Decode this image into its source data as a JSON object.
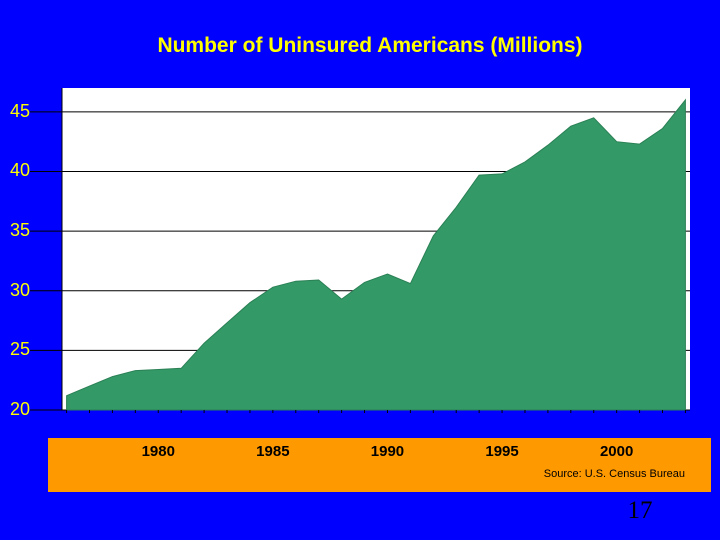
{
  "chart_data": {
    "type": "area",
    "title": "Number of Uninsured Americans (Millions)",
    "xlabel": "",
    "ylabel": "",
    "x": [
      1976,
      1977,
      1978,
      1979,
      1980,
      1981,
      1982,
      1983,
      1984,
      1985,
      1986,
      1987,
      1988,
      1989,
      1990,
      1991,
      1992,
      1993,
      1994,
      1995,
      1996,
      1997,
      1998,
      1999,
      2000,
      2001,
      2002,
      2003
    ],
    "x_ticks": [
      "1980",
      "1985",
      "1990",
      "1995",
      "2000"
    ],
    "y_ticks": [
      "20",
      "25",
      "30",
      "35",
      "40",
      "45"
    ],
    "xlim": [
      1975.8,
      2003.2
    ],
    "ylim": [
      20,
      47
    ],
    "series": [
      {
        "values": [
          21.2,
          22.0,
          22.8,
          23.3,
          23.4,
          23.5,
          25.6,
          27.3,
          29.0,
          30.3,
          30.8,
          30.9,
          29.3,
          30.7,
          31.4,
          30.6,
          34.6,
          37.0,
          39.7,
          39.8,
          40.8,
          42.2,
          43.8,
          44.5,
          42.5,
          42.3,
          43.6,
          46.0
        ]
      }
    ],
    "grid": true,
    "colors": {
      "fill": "#339966",
      "background": "#FFFFFF",
      "band": "#FF9900",
      "page": "#0000FF",
      "text": "#FFFF00"
    }
  },
  "source": "Source: U.S. Census Bureau",
  "slide_number": "17"
}
